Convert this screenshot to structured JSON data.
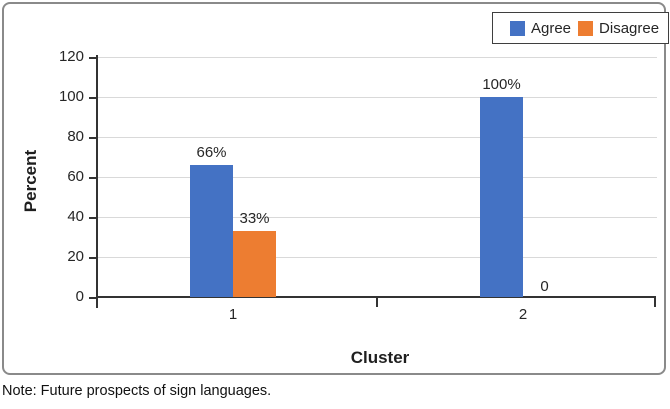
{
  "figure": {
    "note": "Note: Future prospects of sign languages."
  },
  "chart_data": {
    "type": "bar",
    "title": "",
    "categories": [
      "1",
      "2"
    ],
    "series": [
      {
        "name": "Agree",
        "color": "#4472C4",
        "values": [
          66,
          100
        ],
        "data_labels": [
          "66%",
          "100%"
        ]
      },
      {
        "name": "Disagree",
        "color": "#ED7D31",
        "values": [
          33,
          0
        ],
        "data_labels": [
          "33%",
          "0"
        ]
      }
    ],
    "xlabel": "Cluster",
    "ylabel": "Percent",
    "ylim": [
      0,
      120
    ],
    "yticks": [
      0,
      20,
      40,
      60,
      80,
      100,
      120
    ],
    "grid": true,
    "legend_position": "top-right",
    "gridline_color": "#d9d9d9",
    "axis_color": "#333333",
    "text_color": "#262626"
  }
}
